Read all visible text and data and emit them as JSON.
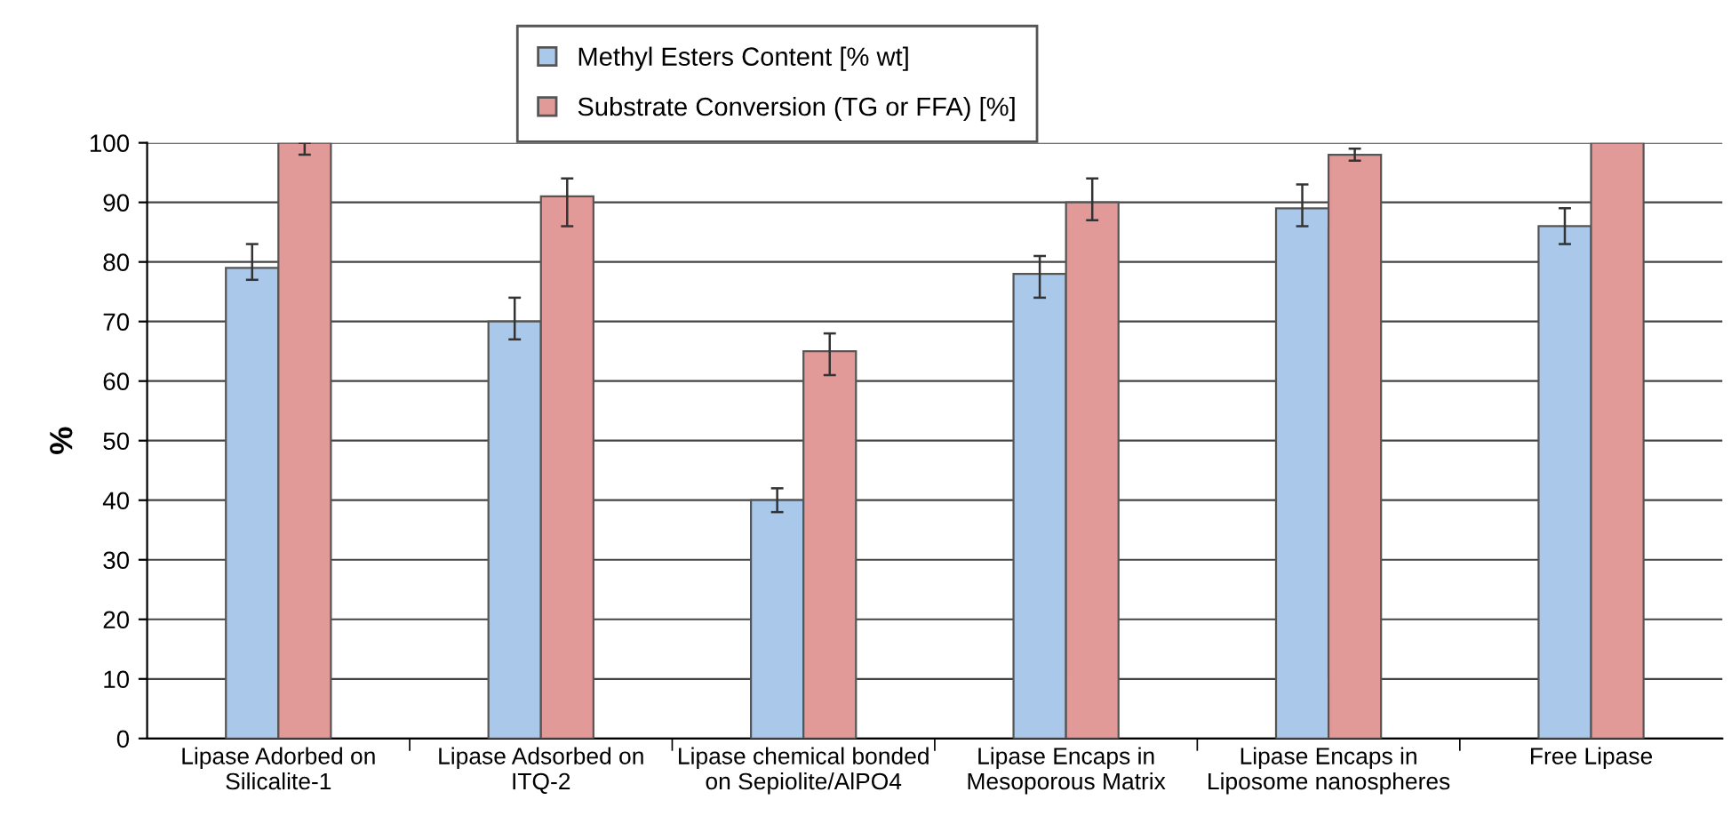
{
  "chart_data": {
    "type": "bar",
    "ylabel": "%",
    "categories": [
      "Lipase Adorbed on\nSilicalite-1",
      "Lipase Adsorbed on\nITQ-2",
      "Lipase chemical bonded\non Sepiolite/AlPO4",
      "Lipase Encaps in\nMesoporous Matrix",
      "Lipase Encaps in\nLiposome nanospheres",
      "Free Lipase"
    ],
    "series": [
      {
        "name": "Methyl Esters Content [% wt]",
        "color": "#a9c8ea",
        "values": [
          79,
          70,
          40,
          78,
          89,
          86
        ],
        "errors": [
          [
            77,
            83
          ],
          [
            67,
            74
          ],
          [
            38,
            42
          ],
          [
            74,
            81
          ],
          [
            86,
            93
          ],
          [
            83,
            89
          ]
        ]
      },
      {
        "name": "Substrate Conversion (TG or FFA) [%]",
        "color": "#e29a98",
        "values": [
          100,
          91,
          65,
          90,
          98,
          100
        ],
        "errors": [
          [
            98,
            100
          ],
          [
            86,
            94
          ],
          [
            61,
            68
          ],
          [
            87,
            94
          ],
          [
            97,
            99
          ],
          null
        ]
      }
    ],
    "ylim": [
      0,
      100
    ],
    "yticks": [
      0,
      10,
      20,
      30,
      40,
      50,
      60,
      70,
      80,
      90,
      100
    ],
    "grid": "y",
    "legend": "top"
  }
}
